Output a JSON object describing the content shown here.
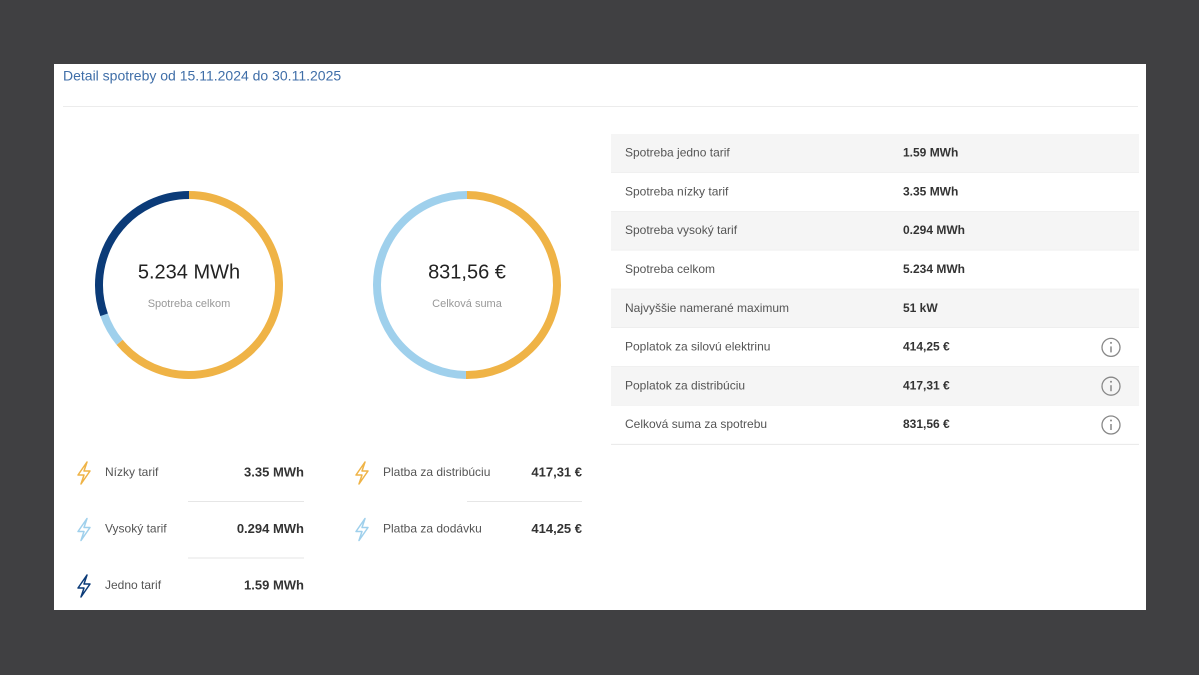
{
  "header": {
    "title": "Detail spotreby od 15.11.2024 do 30.11.2025"
  },
  "donuts": [
    {
      "center_value": "5.234 MWh",
      "center_label": "Spotreba celkom",
      "items": [
        {
          "label": "Nízky tarif",
          "value": 3.35,
          "value_label": "3.35 MWh",
          "color": "#efb346"
        },
        {
          "label": "Vysoký tarif",
          "value": 0.294,
          "value_label": "0.294 MWh",
          "color": "#9fd0ec"
        },
        {
          "label": "Jedno tarif",
          "value": 1.59,
          "value_label": "1.59 MWh",
          "color": "#0b3b78"
        }
      ]
    },
    {
      "center_value": "831,56 €",
      "center_label": "Celková suma",
      "items": [
        {
          "label": "Platba za distribúciu",
          "value": 417.31,
          "value_label": "417,31 €",
          "color": "#efb346"
        },
        {
          "label": "Platba za dodávku",
          "value": 414.25,
          "value_label": "414,25 €",
          "color": "#9fd0ec"
        }
      ]
    }
  ],
  "table": {
    "rows": [
      {
        "label": "Spotreba jedno tarif",
        "value": "1.59 MWh",
        "info": false
      },
      {
        "label": "Spotreba nízky tarif",
        "value": "3.35 MWh",
        "info": false
      },
      {
        "label": "Spotreba vysoký tarif",
        "value": "0.294 MWh",
        "info": false
      },
      {
        "label": "Spotreba celkom",
        "value": "5.234 MWh",
        "info": false
      },
      {
        "label": "Najvyššie namerané maximum",
        "value": "51 kW",
        "info": false
      },
      {
        "label": "Poplatok za silovú elektrinu",
        "value": "414,25 €",
        "info": true
      },
      {
        "label": "Poplatok za distribúciu",
        "value": "417,31 €",
        "info": true
      },
      {
        "label": "Celková suma za spotrebu",
        "value": "831,56 €",
        "info": true
      }
    ]
  }
}
